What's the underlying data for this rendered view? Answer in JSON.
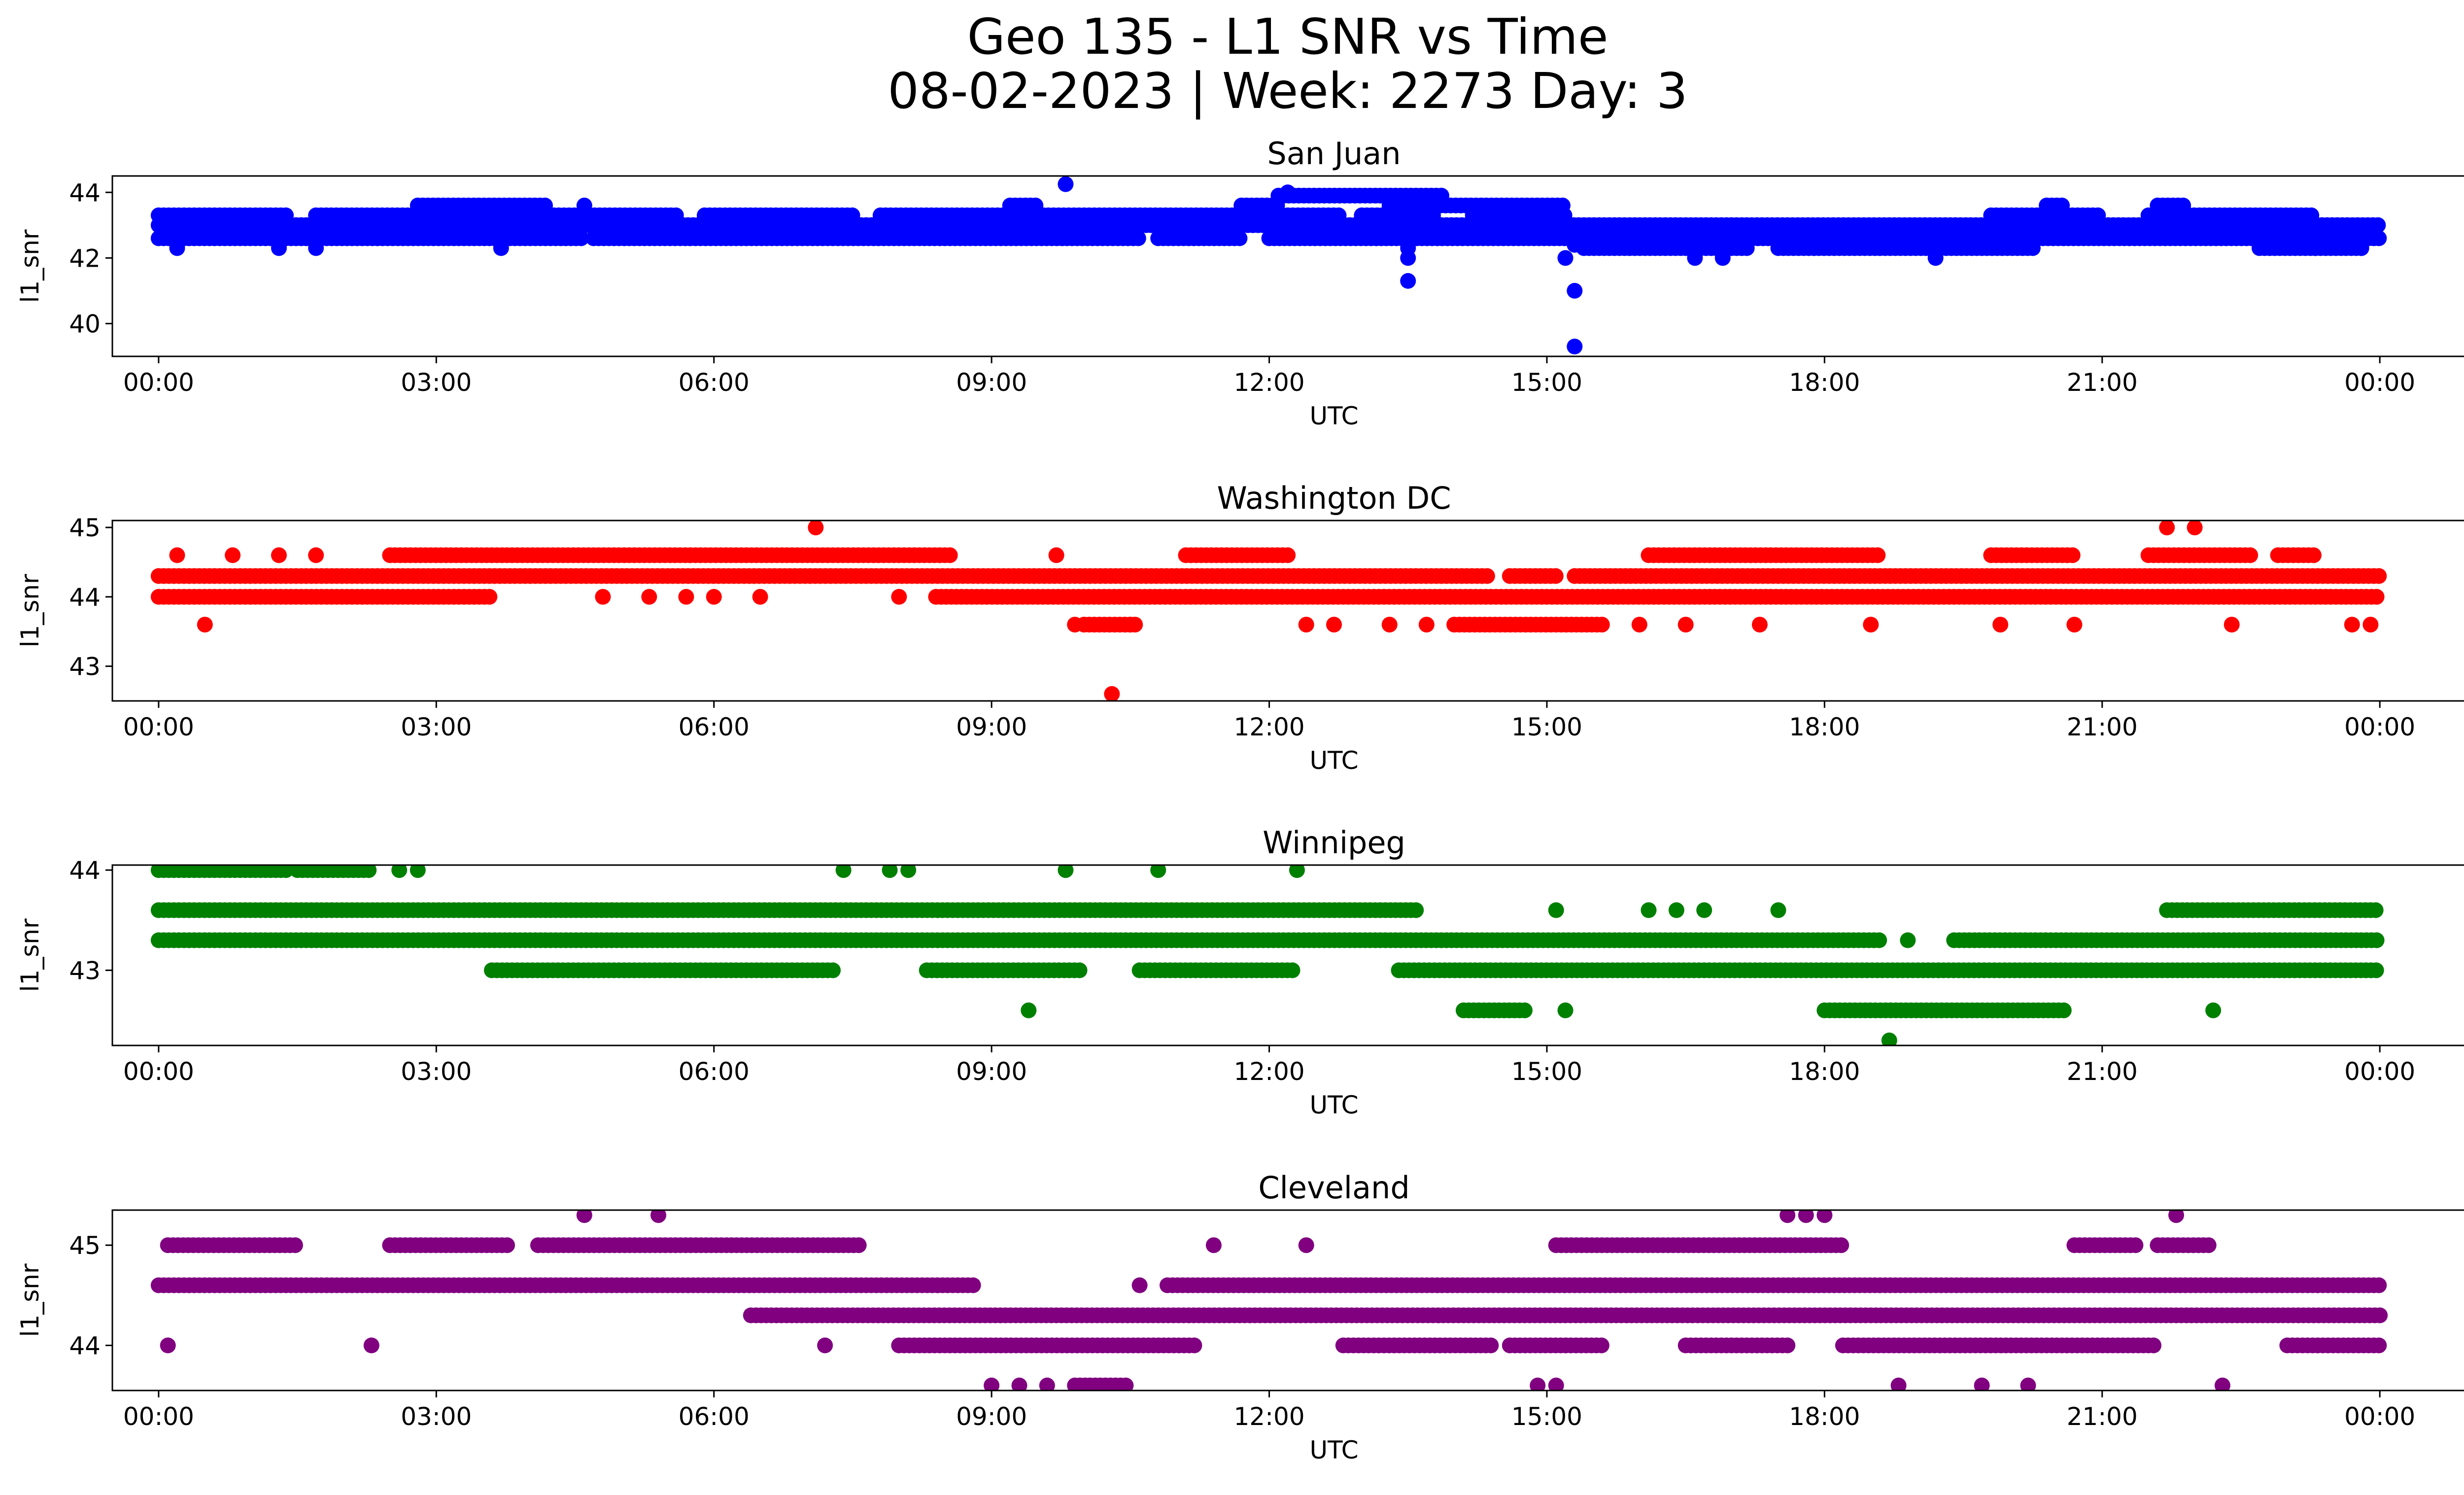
{
  "figure": {
    "title_line_1": "Geo 135 - L1 SNR vs Time",
    "title_line_2": "08-02-2023 | Week: 2273 Day: 3"
  },
  "chart_data": [
    {
      "type": "scatter",
      "title": "San Juan",
      "xlabel": "UTC",
      "ylabel": "l1_snr",
      "color": "#0000ff",
      "xlim_hours": [
        -0.5,
        25.9
      ],
      "ylim": [
        39.0,
        44.5
      ],
      "xticks": [
        0,
        3,
        6,
        9,
        12,
        15,
        18,
        21,
        24
      ],
      "xtick_labels": [
        "00:00",
        "03:00",
        "06:00",
        "09:00",
        "12:00",
        "15:00",
        "18:00",
        "21:00",
        "00:00"
      ],
      "yticks": [
        40,
        42,
        44
      ],
      "ytick_labels": [
        "40",
        "42",
        "44"
      ],
      "bands": [
        {
          "y": 43.3,
          "segments": [
            [
              0,
              1.4
            ],
            [
              1.7,
              3.4
            ],
            [
              3.5,
              5.6
            ],
            [
              5.9,
              7.5
            ],
            [
              7.8,
              12.8
            ],
            [
              13.0,
              13.8
            ],
            [
              14.2,
              15.2
            ],
            [
              19.8,
              21.0
            ],
            [
              21.5,
              23.3
            ]
          ]
        },
        {
          "y": 43.0,
          "segments": [
            [
              0,
              24
            ]
          ]
        },
        {
          "y": 42.6,
          "segments": [
            [
              0,
              4.6
            ],
            [
              4.7,
              10.6
            ],
            [
              10.8,
              11.7
            ],
            [
              12.0,
              24
            ]
          ]
        },
        {
          "y": 43.6,
          "segments": [
            [
              2.8,
              4.2
            ],
            [
              4.6,
              4.6
            ],
            [
              9.2,
              9.5
            ],
            [
              11.7,
              12.1
            ],
            [
              13.3,
              15.2
            ],
            [
              20.4,
              20.6
            ],
            [
              21.6,
              21.9
            ]
          ]
        },
        {
          "y": 42.3,
          "segments": [
            [
              15.4,
              17.2
            ],
            [
              17.5,
              20.3
            ],
            [
              22.7,
              23.8
            ]
          ]
        },
        {
          "y": 43.9,
          "segments": [
            [
              12.1,
              13.9
            ]
          ]
        }
      ],
      "points": [
        [
          9.8,
          44.25
        ],
        [
          12.2,
          44.0
        ],
        [
          3.7,
          42.3
        ],
        [
          0.2,
          42.3
        ],
        [
          1.3,
          42.3
        ],
        [
          1.7,
          42.3
        ],
        [
          13.5,
          42.3
        ],
        [
          13.5,
          42.0
        ],
        [
          13.5,
          41.3
        ],
        [
          15.3,
          42.4
        ],
        [
          15.3,
          41.0
        ],
        [
          15.3,
          39.3
        ],
        [
          15.2,
          42.0
        ],
        [
          16.6,
          42.0
        ],
        [
          16.9,
          42.0
        ],
        [
          19.2,
          42.0
        ],
        [
          23.3,
          42.3
        ],
        [
          23.8,
          42.3
        ]
      ]
    },
    {
      "type": "scatter",
      "title": "Washington DC",
      "xlabel": "UTC",
      "ylabel": "l1_snr",
      "color": "#ff0000",
      "xlim_hours": [
        -0.5,
        25.9
      ],
      "ylim": [
        42.5,
        45.1
      ],
      "xticks": [
        0,
        3,
        6,
        9,
        12,
        15,
        18,
        21,
        24
      ],
      "xtick_labels": [
        "00:00",
        "03:00",
        "06:00",
        "09:00",
        "12:00",
        "15:00",
        "18:00",
        "21:00",
        "00:00"
      ],
      "yticks": [
        43,
        44,
        45
      ],
      "ytick_labels": [
        "43",
        "44",
        "45"
      ],
      "bands": [
        {
          "y": 44.3,
          "segments": [
            [
              0,
              14.4
            ],
            [
              14.6,
              15.1
            ],
            [
              15.3,
              24
            ]
          ]
        },
        {
          "y": 44.0,
          "segments": [
            [
              0,
              3.6
            ],
            [
              8.4,
              24
            ]
          ]
        },
        {
          "y": 44.6,
          "segments": [
            [
              2.5,
              8.6
            ],
            [
              11.1,
              12.2
            ],
            [
              16.1,
              18.6
            ],
            [
              19.8,
              20.7
            ],
            [
              21.5,
              22.6
            ],
            [
              22.9,
              23.3
            ]
          ]
        },
        {
          "y": 43.6,
          "segments": [
            [
              14.0,
              15.6
            ],
            [
              10.0,
              10.6
            ]
          ]
        }
      ],
      "points": [
        [
          7.1,
          45.0
        ],
        [
          21.7,
          45.0
        ],
        [
          22.0,
          45.0
        ],
        [
          10.3,
          42.6
        ],
        [
          0.5,
          43.6
        ],
        [
          9.9,
          43.6
        ],
        [
          10.5,
          43.6
        ],
        [
          12.4,
          43.6
        ],
        [
          12.7,
          43.6
        ],
        [
          13.3,
          43.6
        ],
        [
          13.7,
          43.6
        ],
        [
          16.0,
          43.6
        ],
        [
          16.5,
          43.6
        ],
        [
          17.3,
          43.6
        ],
        [
          18.5,
          43.6
        ],
        [
          19.9,
          43.6
        ],
        [
          20.7,
          43.6
        ],
        [
          22.4,
          43.6
        ],
        [
          23.7,
          43.6
        ],
        [
          23.9,
          43.6
        ],
        [
          0.2,
          44.6
        ],
        [
          0.8,
          44.6
        ],
        [
          1.3,
          44.6
        ],
        [
          1.7,
          44.6
        ],
        [
          4.8,
          44.0
        ],
        [
          5.3,
          44.0
        ],
        [
          5.7,
          44.0
        ],
        [
          6.0,
          44.0
        ],
        [
          6.5,
          44.0
        ],
        [
          8.0,
          44.0
        ],
        [
          9.7,
          44.6
        ]
      ]
    },
    {
      "type": "scatter",
      "title": "Winnipeg",
      "xlabel": "UTC",
      "ylabel": "l1_snr",
      "color": "#008000",
      "xlim_hours": [
        -0.5,
        25.9
      ],
      "ylim": [
        42.25,
        44.05
      ],
      "xticks": [
        0,
        3,
        6,
        9,
        12,
        15,
        18,
        21,
        24
      ],
      "xtick_labels": [
        "00:00",
        "03:00",
        "06:00",
        "09:00",
        "12:00",
        "15:00",
        "18:00",
        "21:00",
        "00:00"
      ],
      "yticks": [
        43,
        44
      ],
      "ytick_labels": [
        "43",
        "44"
      ],
      "bands": [
        {
          "y": 43.6,
          "segments": [
            [
              0,
              13.6
            ],
            [
              21.7,
              24
            ]
          ]
        },
        {
          "y": 43.3,
          "segments": [
            [
              0,
              18.6
            ],
            [
              19.4,
              24
            ]
          ]
        },
        {
          "y": 43.0,
          "segments": [
            [
              3.6,
              7.3
            ],
            [
              8.3,
              10.0
            ],
            [
              10.6,
              12.3
            ],
            [
              13.4,
              24
            ]
          ]
        },
        {
          "y": 42.6,
          "segments": [
            [
              14.1,
              14.8
            ],
            [
              18.0,
              20.6
            ]
          ]
        },
        {
          "y": 44.0,
          "segments": [
            [
              0,
              1.4
            ],
            [
              1.5,
              2.3
            ]
          ]
        }
      ],
      "points": [
        [
          2.6,
          44.0
        ],
        [
          2.8,
          44.0
        ],
        [
          7.4,
          44.0
        ],
        [
          7.9,
          44.0
        ],
        [
          8.1,
          44.0
        ],
        [
          9.8,
          44.0
        ],
        [
          10.8,
          44.0
        ],
        [
          12.3,
          44.0
        ],
        [
          15.1,
          43.6
        ],
        [
          16.1,
          43.6
        ],
        [
          16.4,
          43.6
        ],
        [
          16.7,
          43.6
        ],
        [
          17.5,
          43.6
        ],
        [
          9.4,
          42.6
        ],
        [
          15.2,
          42.6
        ],
        [
          22.2,
          42.6
        ],
        [
          18.7,
          42.3
        ],
        [
          18.9,
          43.3
        ]
      ]
    },
    {
      "type": "scatter",
      "title": "Cleveland",
      "xlabel": "UTC",
      "ylabel": "l1_snr",
      "color": "#800080",
      "xlim_hours": [
        -0.5,
        25.9
      ],
      "ylim": [
        43.55,
        45.35
      ],
      "xticks": [
        0,
        3,
        6,
        9,
        12,
        15,
        18,
        21,
        24
      ],
      "xtick_labels": [
        "00:00",
        "03:00",
        "06:00",
        "09:00",
        "12:00",
        "15:00",
        "18:00",
        "21:00",
        "00:00"
      ],
      "yticks": [
        44,
        45
      ],
      "ytick_labels": [
        "44",
        "45"
      ],
      "bands": [
        {
          "y": 44.6,
          "segments": [
            [
              0,
              8.8
            ],
            [
              10.9,
              24
            ]
          ]
        },
        {
          "y": 44.3,
          "segments": [
            [
              6.4,
              24
            ]
          ]
        },
        {
          "y": 45.0,
          "segments": [
            [
              0.1,
              1.5
            ],
            [
              2.5,
              3.8
            ],
            [
              4.1,
              7.6
            ],
            [
              15.1,
              18.2
            ],
            [
              20.7,
              21.4
            ],
            [
              21.6,
              22.2
            ]
          ]
        },
        {
          "y": 44.0,
          "segments": [
            [
              8.0,
              11.2
            ],
            [
              12.8,
              14.4
            ],
            [
              14.6,
              15.6
            ],
            [
              16.5,
              17.6
            ],
            [
              18.2,
              21.6
            ],
            [
              23.0,
              24
            ]
          ]
        },
        {
          "y": 43.6,
          "segments": [
            [
              9.9,
              10.5
            ]
          ]
        }
      ],
      "points": [
        [
          4.6,
          45.3
        ],
        [
          5.4,
          45.3
        ],
        [
          17.6,
          45.3
        ],
        [
          17.8,
          45.3
        ],
        [
          18.0,
          45.3
        ],
        [
          21.8,
          45.3
        ],
        [
          9.0,
          43.6
        ],
        [
          9.3,
          43.6
        ],
        [
          9.6,
          43.6
        ],
        [
          14.9,
          43.6
        ],
        [
          15.1,
          43.6
        ],
        [
          18.8,
          43.6
        ],
        [
          19.7,
          43.6
        ],
        [
          20.2,
          43.6
        ],
        [
          22.3,
          43.6
        ],
        [
          7.2,
          44.0
        ],
        [
          2.3,
          44.0
        ],
        [
          0.1,
          44.0
        ],
        [
          10.6,
          44.6
        ],
        [
          11.4,
          45.0
        ],
        [
          12.4,
          45.0
        ]
      ]
    }
  ]
}
